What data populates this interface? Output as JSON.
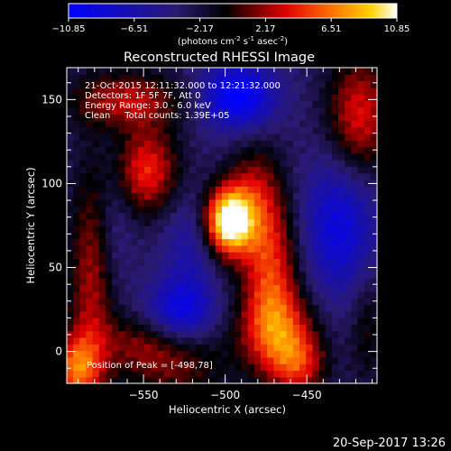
{
  "colorbar": {
    "ticks": [
      "-10.85",
      "-6.51",
      "-2.17",
      "2.17",
      "6.51",
      "10.85"
    ],
    "tick_values": [
      -10.85,
      -6.51,
      -2.17,
      2.17,
      6.51,
      10.85
    ],
    "range": [
      -10.85,
      10.85
    ],
    "units_main": "(photons cm",
    "units_exp1": "-2",
    "units_mid": " s",
    "units_exp2": "-1",
    "units_mid2": " asec",
    "units_exp3": "-2",
    "units_end": ")"
  },
  "chart_data": {
    "type": "heatmap",
    "title": "Reconstructed RHESSI Image",
    "xlabel": "Heliocentric X (arcsec)",
    "ylabel": "Heliocentric Y (arcsec)",
    "xlim": [
      -597,
      -407
    ],
    "ylim": [
      -19,
      169
    ],
    "xticks": [
      -550,
      -500,
      -450
    ],
    "xtick_labels": [
      "−550",
      "−500",
      "−450"
    ],
    "yticks": [
      0,
      50,
      100,
      150
    ],
    "ytick_labels": [
      "0",
      "50",
      "100",
      "150"
    ],
    "colormap": "idl-blue-red-yellow",
    "value_range": [
      -10.85,
      10.85
    ],
    "peak": [
      -498,
      78
    ],
    "annotations": {
      "time": "21-Oct-2015 12:11:32.000 to 12:21:32.000",
      "detectors": "Detectors: 1F 5F 7F, Att 0",
      "energy": "Energy Range: 3.0 - 6.0 keV",
      "method": "Clean     Total counts: 1.39E+05",
      "peak": "Position of Peak = [-498,78]"
    },
    "sources": [
      {
        "x": -498,
        "y": 78,
        "sx": 10,
        "sy": 14,
        "amp": 15
      },
      {
        "x": -482,
        "y": 92,
        "sx": 12,
        "sy": 24,
        "amp": 5
      },
      {
        "x": -472,
        "y": 48,
        "sx": 12,
        "sy": 30,
        "amp": 7
      },
      {
        "x": -468,
        "y": 12,
        "sx": 16,
        "sy": 18,
        "amp": 7
      },
      {
        "x": -455,
        "y": -8,
        "sx": 12,
        "sy": 14,
        "amp": 6
      },
      {
        "x": -548,
        "y": 108,
        "sx": 14,
        "sy": 18,
        "amp": 7.5
      },
      {
        "x": -560,
        "y": 150,
        "sx": 24,
        "sy": 12,
        "amp": 6
      },
      {
        "x": -582,
        "y": 40,
        "sx": 10,
        "sy": 50,
        "amp": 5.5
      },
      {
        "x": -592,
        "y": -10,
        "sx": 10,
        "sy": 14,
        "amp": 8
      },
      {
        "x": -530,
        "y": 0,
        "sx": 22,
        "sy": 22,
        "amp": 5
      },
      {
        "x": -555,
        "y": 5,
        "sx": 18,
        "sy": 12,
        "amp": 3
      },
      {
        "x": -418,
        "y": 140,
        "sx": 14,
        "sy": 26,
        "amp": 7
      },
      {
        "x": -413,
        "y": 15,
        "sx": 8,
        "sy": 25,
        "amp": 3
      },
      {
        "x": -492,
        "y": 152,
        "sx": 16,
        "sy": 14,
        "amp": -8
      },
      {
        "x": -528,
        "y": 22,
        "sx": 16,
        "sy": 14,
        "amp": -8
      },
      {
        "x": -430,
        "y": 75,
        "sx": 16,
        "sy": 30,
        "amp": -6
      },
      {
        "x": -522,
        "y": 60,
        "sx": 12,
        "sy": 24,
        "amp": -3
      },
      {
        "x": -568,
        "y": 80,
        "sx": 8,
        "sy": 30,
        "amp": -2
      }
    ]
  },
  "footer": {
    "date": "20-Sep-2017 13:26"
  }
}
